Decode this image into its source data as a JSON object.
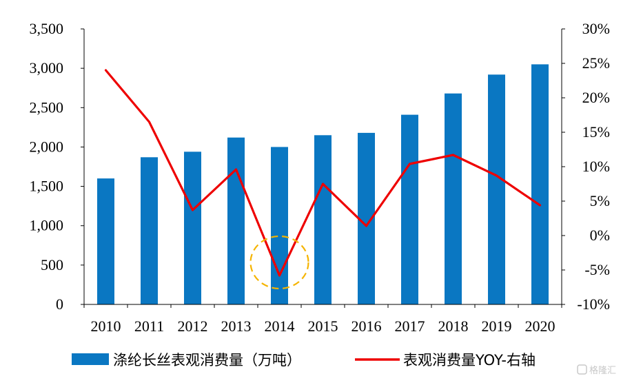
{
  "chart_data": {
    "type": "bar",
    "categories": [
      "2010",
      "2011",
      "2012",
      "2013",
      "2014",
      "2015",
      "2016",
      "2017",
      "2018",
      "2019",
      "2020"
    ],
    "series": [
      {
        "name": "涤纶长丝表观消费量（万吨）",
        "type": "bar",
        "axis": "left",
        "color": "#0a77c2",
        "values": [
          1600,
          1870,
          1940,
          2120,
          2000,
          2150,
          2180,
          2410,
          2680,
          2920,
          3050
        ]
      },
      {
        "name": "表观消费量YOY-右轴",
        "type": "line",
        "axis": "right",
        "color": "#ee0000",
        "values": [
          24.0,
          16.5,
          3.7,
          9.6,
          -5.8,
          7.5,
          1.4,
          10.4,
          11.7,
          8.7,
          4.4
        ]
      }
    ],
    "y_left": {
      "ylim": [
        0,
        3500
      ],
      "ticks": [
        0,
        500,
        1000,
        1500,
        2000,
        2500,
        3000,
        3500
      ],
      "tick_labels": [
        "0",
        "500",
        "1,000",
        "1,500",
        "2,000",
        "2,500",
        "3,000",
        "3,500"
      ]
    },
    "y_right": {
      "ylim": [
        -10,
        30
      ],
      "ticks": [
        -10,
        -5,
        0,
        5,
        10,
        15,
        20,
        25,
        30
      ],
      "tick_labels": [
        "-10%",
        "-5%",
        "0%",
        "5%",
        "10%",
        "15%",
        "20%",
        "25%",
        "30%"
      ]
    },
    "annotation": {
      "type": "dashed-circle",
      "category": "2014",
      "color": "#f5b400"
    },
    "grid": false,
    "legend_position": "bottom"
  },
  "watermark": {
    "text": "格隆汇"
  }
}
